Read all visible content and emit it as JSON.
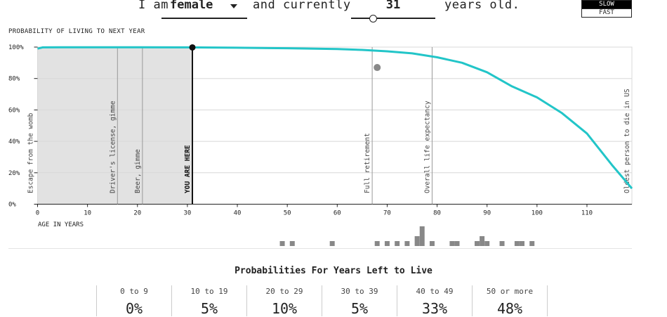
{
  "controls": {
    "prefix": "I am",
    "sex": "female",
    "middle": "and currently",
    "age": "31",
    "age_value": 31,
    "age_range": [
      0,
      119
    ],
    "suffix": "years old.",
    "speed_slow": "SLOW",
    "speed_fast": "FAST"
  },
  "chart_data": {
    "type": "line",
    "title": "PROBABILITY OF LIVING TO NEXT YEAR",
    "xlabel": "AGE IN YEARS",
    "ylabel": "PROBABILITY OF LIVING TO NEXT YEAR",
    "xlim": [
      0,
      119
    ],
    "ylim": [
      0,
      100
    ],
    "x_ticks": [
      "0",
      "10",
      "20",
      "30",
      "40",
      "50",
      "60",
      "70",
      "80",
      "90",
      "100",
      "110"
    ],
    "y_ticks": [
      "0%",
      "20%",
      "40%",
      "60%",
      "80%",
      "100%"
    ],
    "grid": true,
    "shaded_range": [
      0,
      31
    ],
    "current_age": 31,
    "series": [
      {
        "name": "",
        "color": "#22c5c8",
        "x": [
          0,
          1,
          5,
          10,
          20,
          30,
          40,
          50,
          60,
          65,
          70,
          75,
          80,
          85,
          90,
          95,
          100,
          105,
          110,
          115,
          119
        ],
        "values": [
          99,
          99.8,
          99.9,
          99.9,
          99.9,
          99.8,
          99.6,
          99.3,
          98.8,
          98.2,
          97.3,
          96,
          93.5,
          90,
          84,
          75,
          68,
          58,
          45,
          25,
          10
        ]
      }
    ],
    "markers": [
      {
        "x": 0,
        "label": "Escape from the womb"
      },
      {
        "x": 16,
        "label": "Driver's license, gimme"
      },
      {
        "x": 21,
        "label": "Beer, gimme"
      },
      {
        "x": 31,
        "label": "YOU ARE HERE"
      },
      {
        "x": 67,
        "label": "Full retirement"
      },
      {
        "x": 79,
        "label": "Overall life expectancy"
      },
      {
        "x": 119,
        "label": "Oldest person to die in US"
      }
    ],
    "point": {
      "x": 68,
      "y": 87,
      "color": "#888888"
    },
    "simulated_deaths": [
      {
        "age": 49,
        "count": 1
      },
      {
        "age": 51,
        "count": 1
      },
      {
        "age": 59,
        "count": 1
      },
      {
        "age": 68,
        "count": 1
      },
      {
        "age": 70,
        "count": 1
      },
      {
        "age": 72,
        "count": 1
      },
      {
        "age": 74,
        "count": 1
      },
      {
        "age": 76,
        "count": 2
      },
      {
        "age": 77,
        "count": 4
      },
      {
        "age": 79,
        "count": 1
      },
      {
        "age": 83,
        "count": 1
      },
      {
        "age": 84,
        "count": 1
      },
      {
        "age": 88,
        "count": 1
      },
      {
        "age": 89,
        "count": 2
      },
      {
        "age": 90,
        "count": 1
      },
      {
        "age": 93,
        "count": 1
      },
      {
        "age": 96,
        "count": 1
      },
      {
        "age": 97,
        "count": 1
      },
      {
        "age": 99,
        "count": 1
      }
    ]
  },
  "distribution": {
    "title": "Probabilities For Years Left to Live",
    "bins": [
      {
        "label": "0 to 9",
        "value": "0%"
      },
      {
        "label": "10 to 19",
        "value": "5%"
      },
      {
        "label": "20 to 29",
        "value": "10%"
      },
      {
        "label": "30 to 39",
        "value": "5%"
      },
      {
        "label": "40 to 49",
        "value": "33%"
      },
      {
        "label": "50 or more",
        "value": "48%"
      }
    ]
  }
}
